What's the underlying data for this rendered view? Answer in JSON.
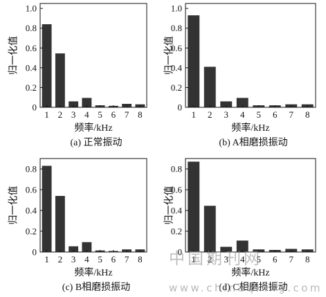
{
  "chart_data": [
    {
      "type": "bar",
      "title": "(a) 正常振动",
      "xlabel": "频率/kHz",
      "ylabel": "归一化值",
      "categories": [
        "1",
        "2",
        "3",
        "4",
        "5",
        "6",
        "7",
        "8"
      ],
      "values": [
        0.84,
        0.545,
        0.06,
        0.095,
        0.02,
        0.015,
        0.035,
        0.03
      ],
      "ylim": [
        0,
        1.05
      ],
      "yticks": [
        0,
        0.2,
        0.4,
        0.6,
        0.8,
        1.0
      ],
      "ytick_labels": [
        "0",
        "0.2",
        "0.4",
        "0.6",
        "0.8",
        "1.0"
      ],
      "grid": false,
      "bar_color": "#333333"
    },
    {
      "type": "bar",
      "title": "(b) A相磨损振动",
      "xlabel": "频率/kHz",
      "ylabel": "归一化值",
      "categories": [
        "1",
        "2",
        "3",
        "4",
        "5",
        "6",
        "7",
        "8"
      ],
      "values": [
        0.93,
        0.41,
        0.06,
        0.095,
        0.02,
        0.02,
        0.03,
        0.03
      ],
      "ylim": [
        0,
        1.05
      ],
      "yticks": [
        0,
        0.2,
        0.4,
        0.6,
        0.8,
        1.0
      ],
      "ytick_labels": [
        "0",
        "0.2",
        "0.4",
        "0.6",
        "0.8",
        "1.0"
      ],
      "grid": false,
      "bar_color": "#333333"
    },
    {
      "type": "bar",
      "title": "(c) B相磨损振动",
      "xlabel": "频率/kHz",
      "ylabel": "归一化值",
      "categories": [
        "1",
        "2",
        "3",
        "4",
        "5",
        "6",
        "7",
        "8"
      ],
      "values": [
        0.83,
        0.54,
        0.055,
        0.095,
        0.015,
        0.01,
        0.025,
        0.025
      ],
      "ylim": [
        0,
        0.9
      ],
      "yticks": [
        0,
        0.2,
        0.4,
        0.6,
        0.8
      ],
      "ytick_labels": [
        "0",
        "0.2",
        "0.4",
        "0.6",
        "0.8"
      ],
      "grid": false,
      "bar_color": "#333333"
    },
    {
      "type": "bar",
      "title": "(d) C相磨损振动",
      "xlabel": "频率/kHz",
      "ylabel": "归一化值",
      "categories": [
        "1",
        "2",
        "3",
        "4",
        "5",
        "6",
        "7",
        "8"
      ],
      "values": [
        0.87,
        0.445,
        0.05,
        0.11,
        0.025,
        0.02,
        0.03,
        0.025
      ],
      "ylim": [
        0,
        0.9
      ],
      "yticks": [
        0,
        0.2,
        0.4,
        0.6,
        0.8
      ],
      "ytick_labels": [
        "0",
        "0.2",
        "0.4",
        "0.6",
        "0.8"
      ],
      "grid": false,
      "bar_color": "#333333"
    }
  ],
  "watermark": {
    "cn": "中国期刊网",
    "url": "www.chinaqking.com"
  }
}
